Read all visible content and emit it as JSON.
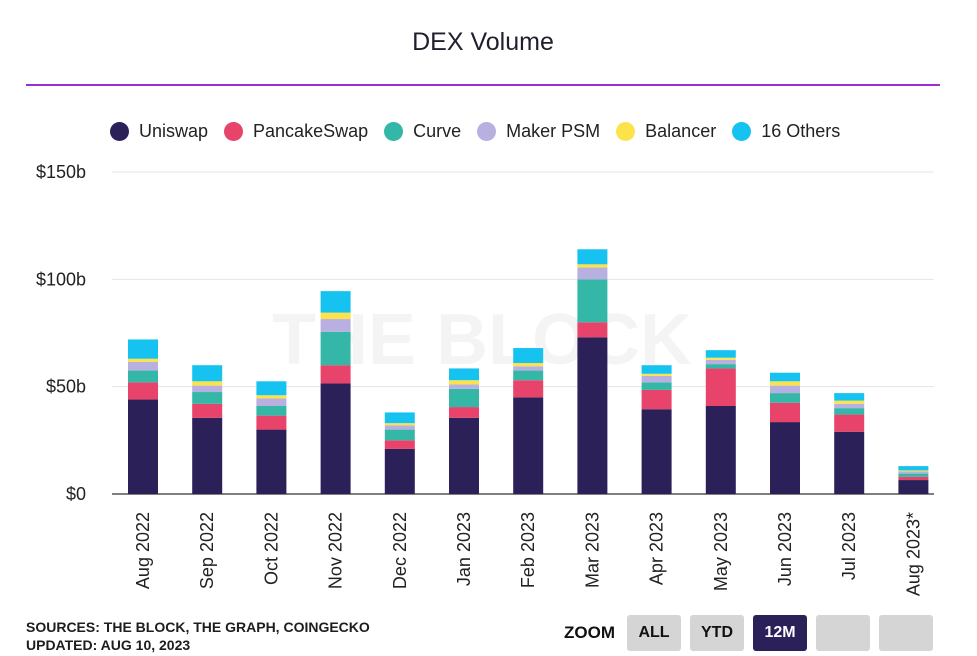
{
  "title": "DEX Volume",
  "watermark": "THE BLOCK",
  "footer": {
    "sources": "SOURCES: THE BLOCK, THE GRAPH, COINGECKO",
    "updated": "UPDATED: AUG 10, 2023"
  },
  "zoom": {
    "label": "ZOOM",
    "buttons": [
      {
        "label": "ALL",
        "active": false
      },
      {
        "label": "YTD",
        "active": false
      },
      {
        "label": "12M",
        "active": true
      },
      {
        "label": "",
        "active": false
      },
      {
        "label": "",
        "active": false
      }
    ]
  },
  "chart_data": {
    "type": "bar",
    "stacked": true,
    "title": "DEX Volume",
    "xlabel": "",
    "ylabel": "",
    "ylim": [
      0,
      150
    ],
    "y_ticks": [
      0,
      50,
      100,
      150
    ],
    "y_tick_labels": [
      "$0",
      "$50b",
      "$100b",
      "$150b"
    ],
    "grid": true,
    "legend_position": "top",
    "categories": [
      "Aug 2022",
      "Sep 2022",
      "Oct 2022",
      "Nov 2022",
      "Dec 2022",
      "Jan 2023",
      "Feb 2023",
      "Mar 2023",
      "Apr 2023",
      "May 2023",
      "Jun 2023",
      "Jul 2023",
      "Aug 2023*"
    ],
    "series": [
      {
        "name": "Uniswap",
        "color": "#2b2158",
        "values": [
          44,
          35.5,
          30,
          51.5,
          21,
          35.5,
          45,
          73,
          39.5,
          41,
          33.5,
          29,
          6.5
        ]
      },
      {
        "name": "PancakeSwap",
        "color": "#e8436a",
        "values": [
          8,
          6.5,
          6.5,
          8.5,
          4,
          5,
          8,
          7,
          9,
          17.5,
          9,
          8,
          1.5
        ]
      },
      {
        "name": "Curve",
        "color": "#34b7a7",
        "values": [
          5.5,
          5.5,
          4.5,
          15.5,
          5,
          8.5,
          4.5,
          20,
          3.5,
          2,
          4.5,
          3,
          1.5
        ]
      },
      {
        "name": "Maker PSM",
        "color": "#b8b0e0",
        "values": [
          4,
          3,
          3.5,
          6,
          2,
          2,
          2,
          5.5,
          3,
          2,
          3.5,
          2,
          1
        ]
      },
      {
        "name": "Balancer",
        "color": "#fde34b",
        "values": [
          1.5,
          2,
          1.5,
          3,
          1,
          2,
          1.5,
          1.5,
          1,
          1,
          2,
          1.5,
          0.5
        ]
      },
      {
        "name": "16 Others",
        "color": "#16c3f0",
        "values": [
          9,
          7.5,
          6.5,
          10,
          5,
          5.5,
          7,
          7,
          4,
          3.5,
          4,
          3.5,
          2
        ]
      }
    ]
  }
}
